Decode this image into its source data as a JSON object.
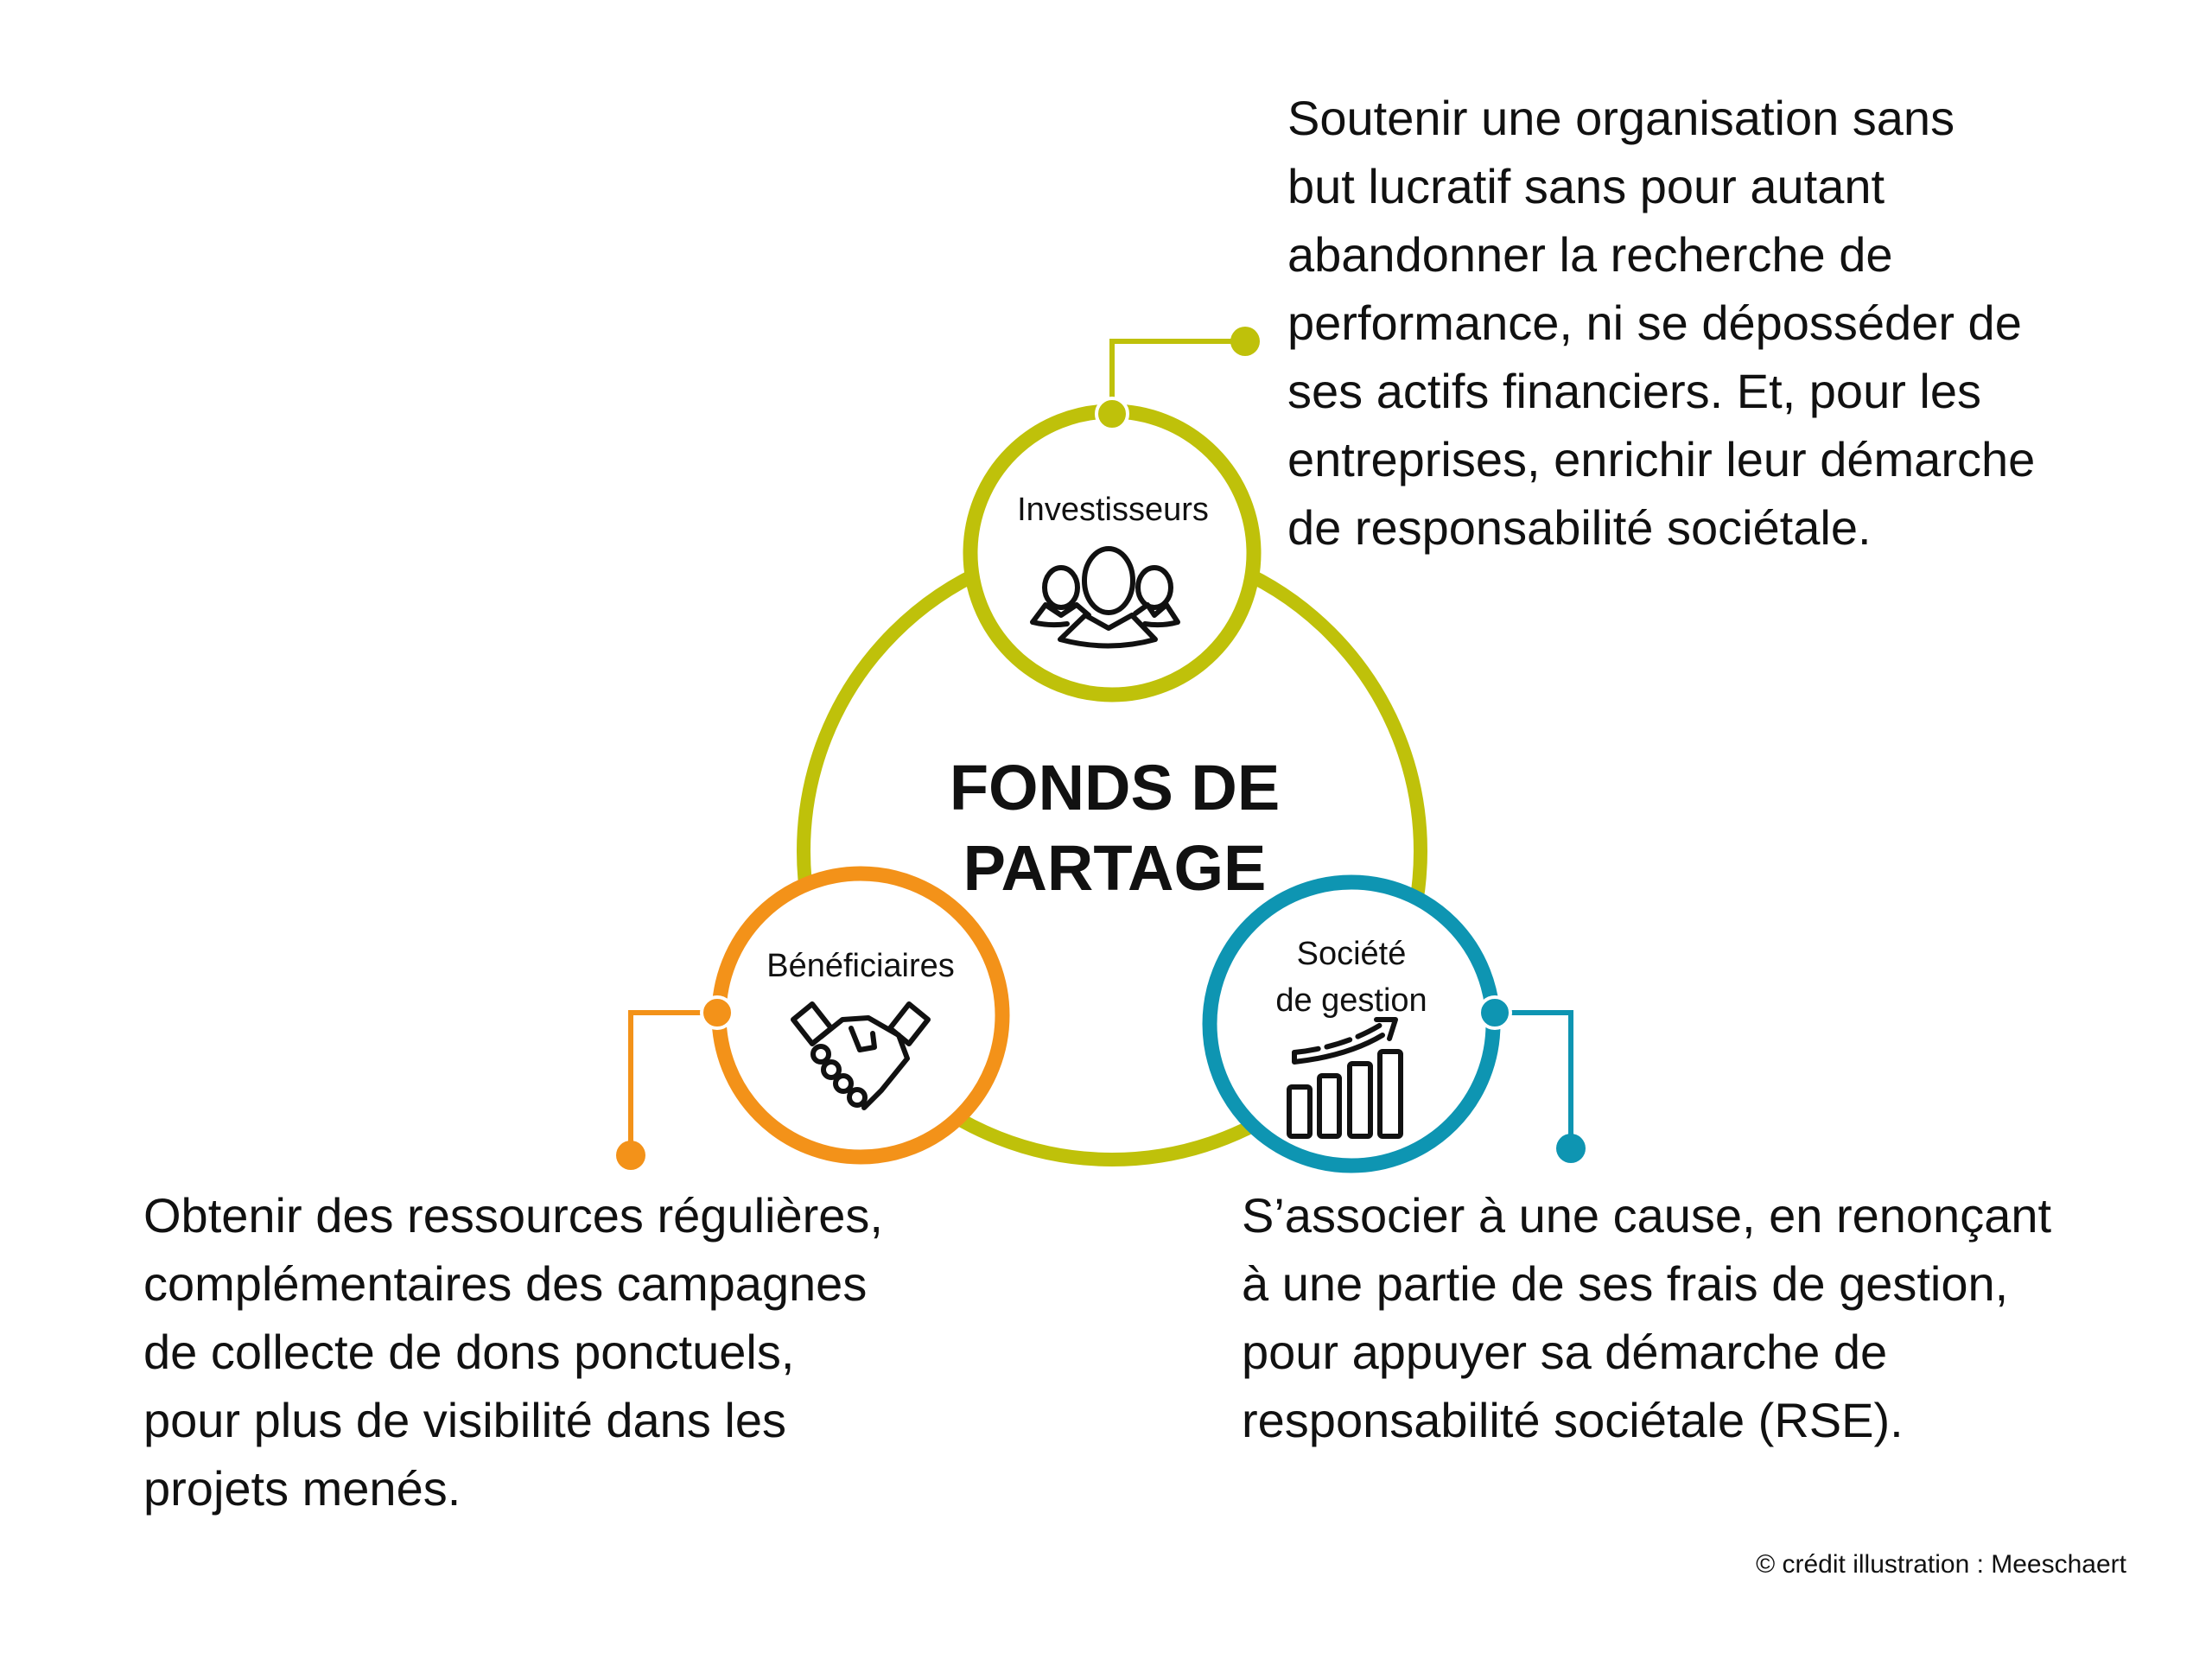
{
  "title": [
    "FONDS DE",
    "PARTAGE"
  ],
  "colors": {
    "investisseurs": "#BFC10A",
    "beneficiaires": "#F39219",
    "societe": "#0E95B2",
    "main_ring": "#BFC10A"
  },
  "nodes": {
    "investisseurs": {
      "label": "Investisseurs",
      "icon": "people-group-icon",
      "text": [
        "Soutenir une organisation sans",
        "but lucratif sans pour autant",
        "abandonner la recherche de",
        "performance, ni se déposséder de",
        "ses actifs financiers. Et, pour les",
        "entreprises, enrichir leur démarche",
        "de responsabilité sociétale."
      ]
    },
    "beneficiaires": {
      "label": "Bénéficiaires",
      "icon": "handshake-icon",
      "text": [
        "Obtenir des ressources régulières,",
        "complémentaires des campagnes",
        "de collecte de dons ponctuels,",
        "pour plus de visibilité dans les",
        "projets menés."
      ]
    },
    "societe": {
      "label": [
        "Société",
        "de gestion"
      ],
      "icon": "growth-chart-icon",
      "text": [
        "S’associer à une cause, en renonçant",
        "à une partie de ses frais de gestion,",
        "pour appuyer sa démarche de",
        "responsabilité sociétale (RSE)."
      ]
    }
  },
  "credit": "©  crédit illustration : Meeschaert"
}
